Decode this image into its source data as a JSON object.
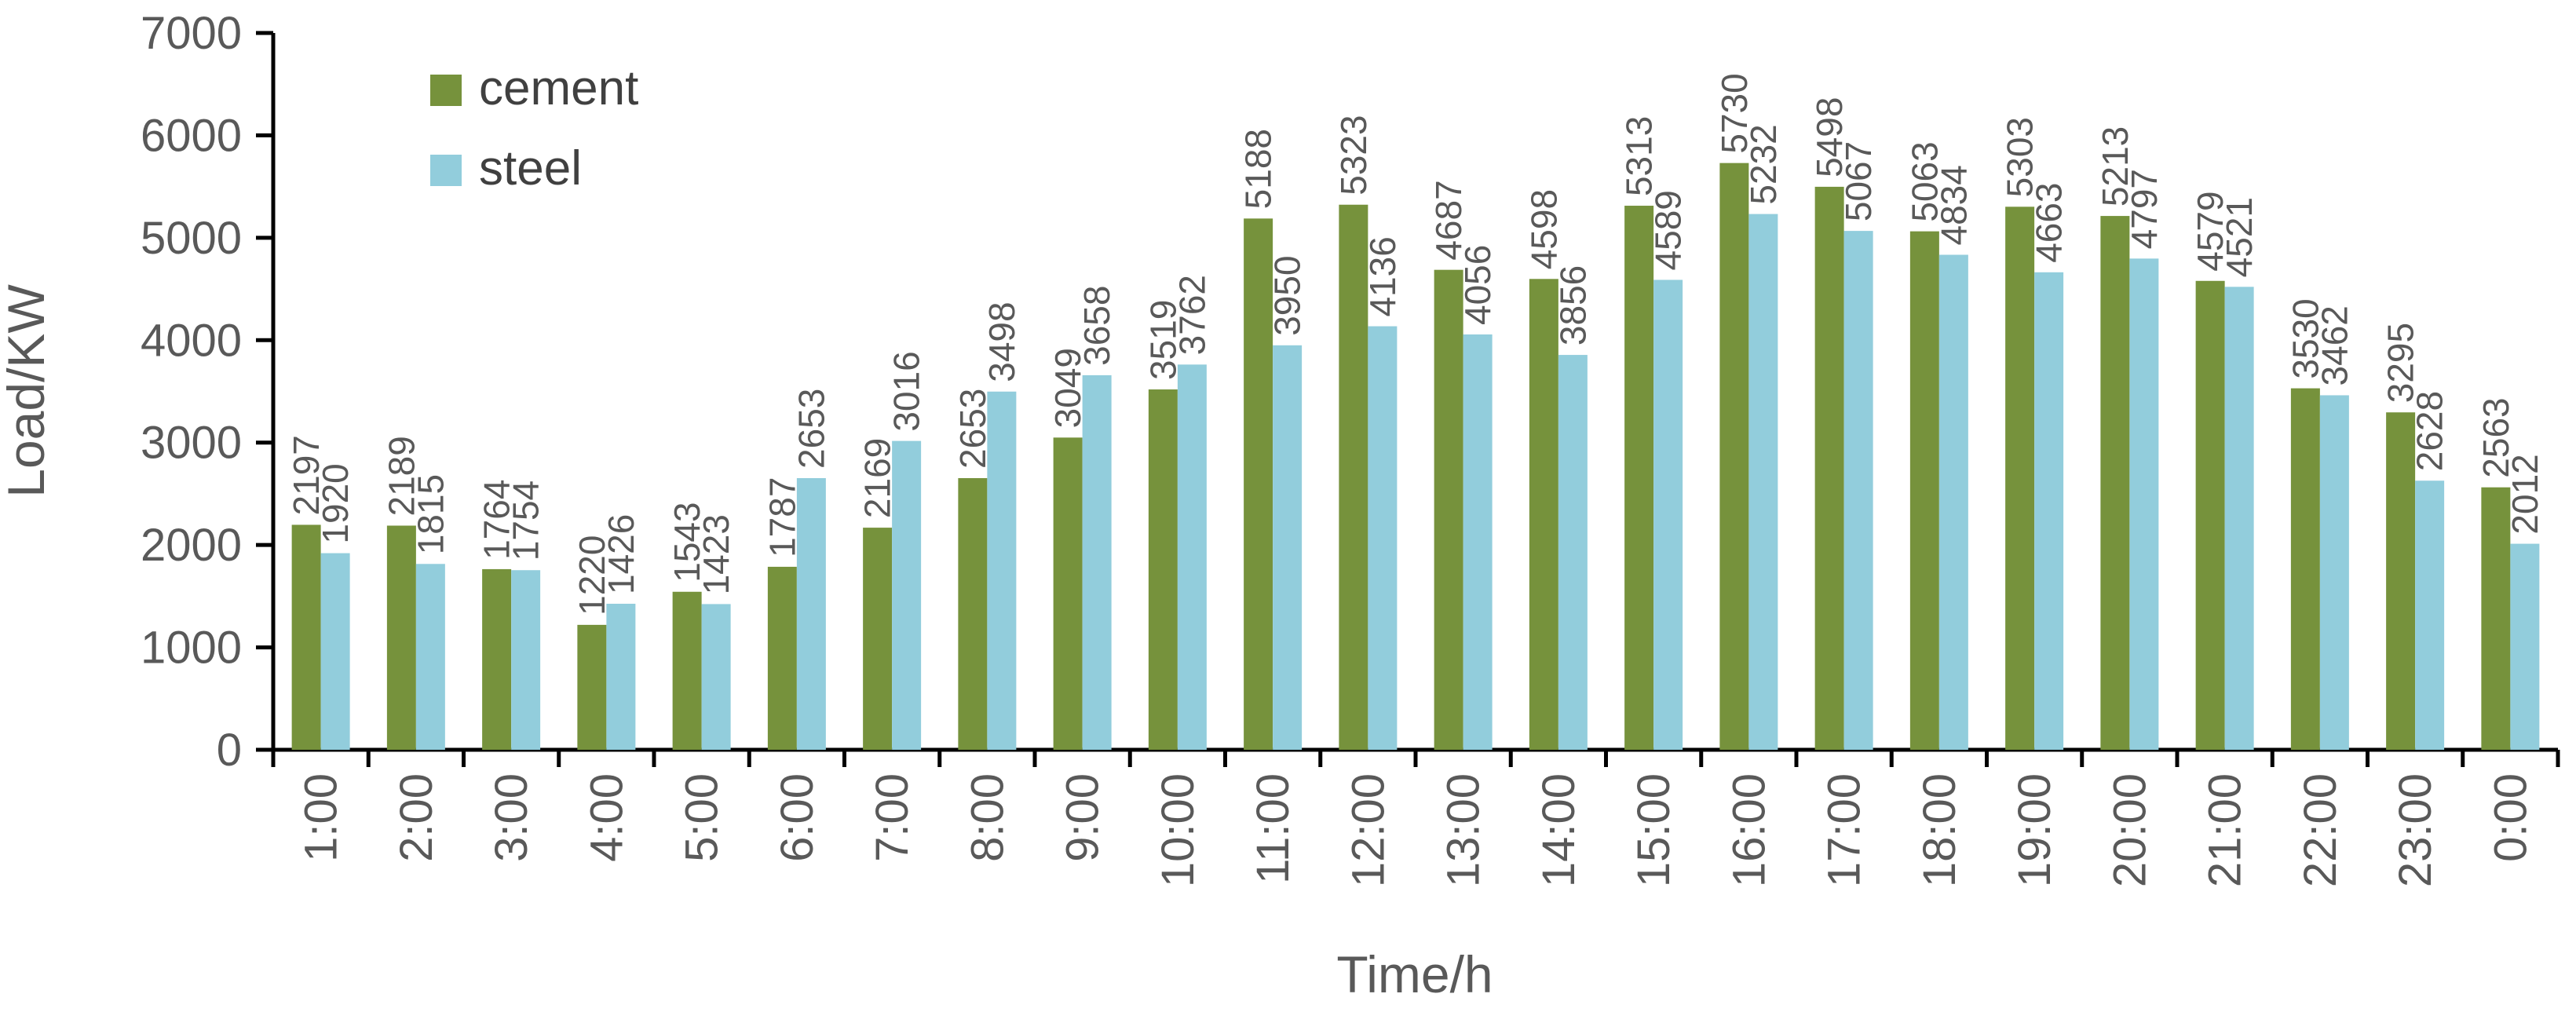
{
  "chart_data": {
    "type": "bar",
    "xlabel": "Time/h",
    "ylabel": "Load/KW",
    "ylim": [
      0,
      7000
    ],
    "yticks": [
      0,
      1000,
      2000,
      3000,
      4000,
      5000,
      6000,
      7000
    ],
    "grid": false,
    "legend_position": "top-left",
    "categories": [
      "1:00",
      "2:00",
      "3:00",
      "4:00",
      "5:00",
      "6:00",
      "7:00",
      "8:00",
      "9:00",
      "10:00",
      "11:00",
      "12:00",
      "13:00",
      "14:00",
      "15:00",
      "16:00",
      "17:00",
      "18:00",
      "19:00",
      "20:00",
      "21:00",
      "22:00",
      "23:00",
      "0:00"
    ],
    "series": [
      {
        "name": "cement",
        "color": "#76923C",
        "values": [
          2197,
          2189,
          1764,
          1220,
          1543,
          1787,
          2169,
          2653,
          3049,
          3519,
          5188,
          5323,
          4687,
          4598,
          5313,
          5730,
          5498,
          5063,
          5303,
          5213,
          4579,
          3530,
          3295,
          2563
        ]
      },
      {
        "name": "steel",
        "color": "#92CDDC",
        "values": [
          1920,
          1815,
          1754,
          1426,
          1423,
          2653,
          3016,
          3498,
          3658,
          3762,
          3950,
          4136,
          4056,
          3856,
          4589,
          5232,
          5067,
          4834,
          4663,
          4797,
          4521,
          3462,
          2628,
          2012
        ]
      }
    ]
  }
}
